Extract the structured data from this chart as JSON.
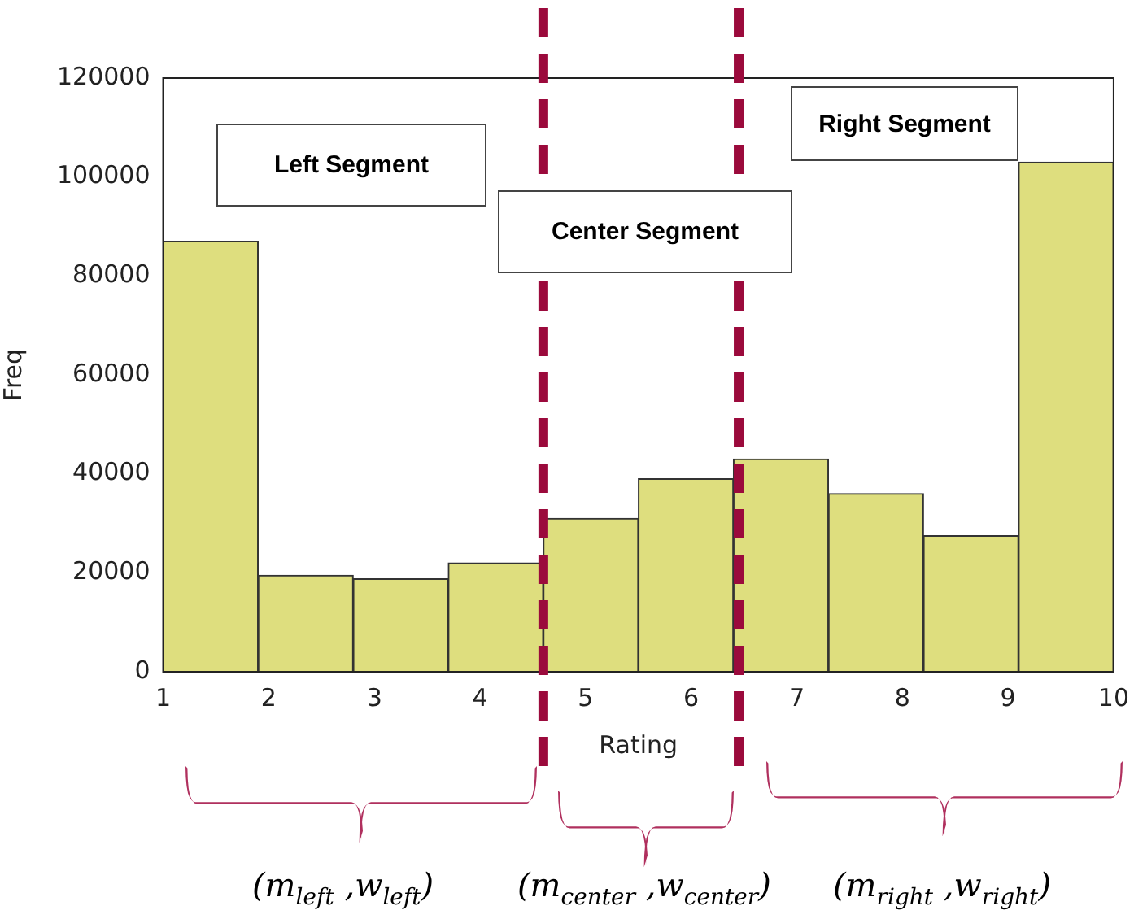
{
  "chart_data": {
    "type": "histogram",
    "xlabel": "Rating",
    "ylabel": "Freq",
    "bins": [
      1,
      1.9,
      2.8,
      3.7,
      4.6,
      5.5,
      6.4,
      7.3,
      8.2,
      9.1,
      10
    ],
    "values": [
      87000,
      19500,
      18800,
      22000,
      31000,
      39000,
      43000,
      36000,
      27500,
      103000
    ],
    "color": "#dede7e",
    "xlim": [
      1,
      10
    ],
    "xticks": [
      1,
      2,
      3,
      4,
      5,
      6,
      7,
      8,
      9,
      10
    ],
    "ylim": [
      0,
      120000
    ],
    "yticks": [
      0,
      20000,
      40000,
      60000,
      80000,
      100000,
      120000
    ],
    "grid": false,
    "ref_lines": [
      {
        "axis": "x",
        "value": 4.6,
        "color": "#9b0a3c",
        "line_style": "dashed"
      },
      {
        "axis": "x",
        "value": 6.45,
        "color": "#9b0a3c",
        "line_style": "dashed"
      }
    ],
    "annotations": [
      "Left Segment",
      "Center Segment",
      "Right Segment",
      "(m$_{left}$ ,w$_{left}$)",
      "(m$_{center}$ ,w$_{center}$)",
      "(m$_{right}$ ,w$_{right}$)"
    ]
  }
}
